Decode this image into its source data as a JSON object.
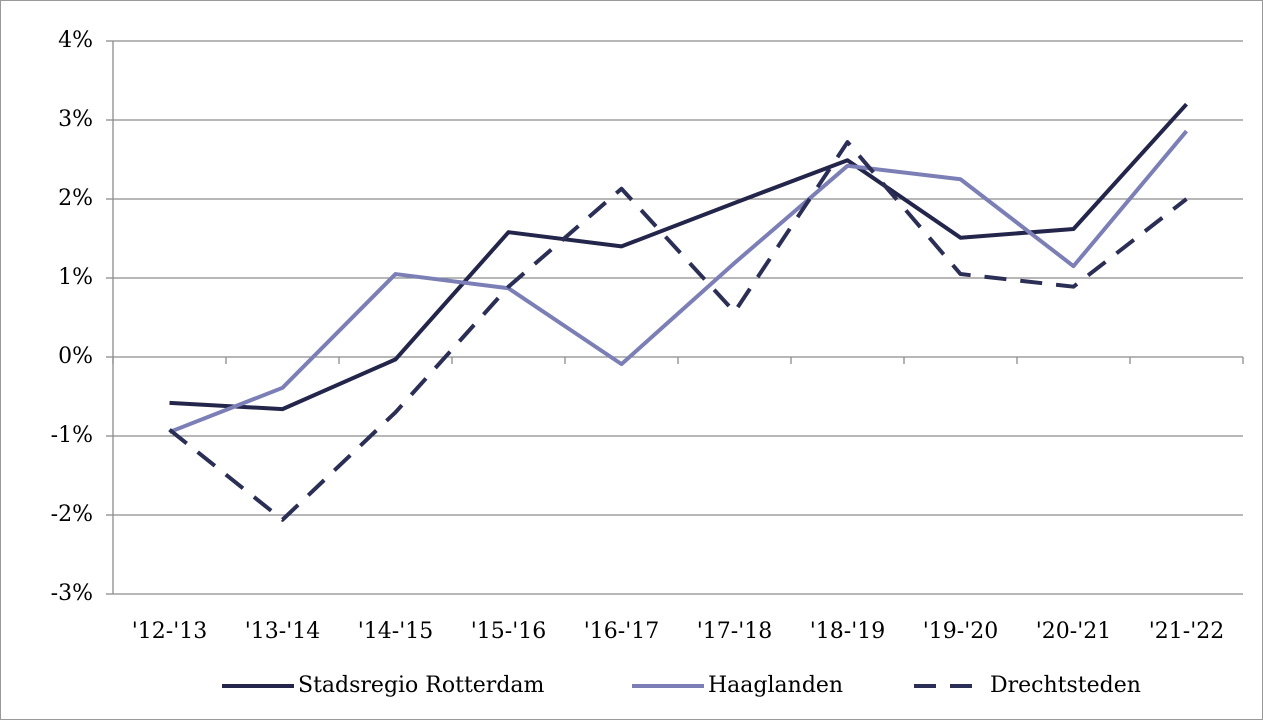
{
  "chart_data": {
    "type": "line",
    "categories": [
      "'12-'13",
      "'13-'14",
      "'14-'15",
      "'15-'16",
      "'16-'17",
      "'17-'18",
      "'18-'19",
      "'19-'20",
      "'20-'21",
      "'21-'22"
    ],
    "series": [
      {
        "name": "Stadsregio Rotterdam",
        "color": "#23264a",
        "dash": "solid",
        "values": [
          -0.58,
          -0.66,
          -0.03,
          1.58,
          1.4,
          1.95,
          2.49,
          1.51,
          1.62,
          3.2
        ]
      },
      {
        "name": "Haaglanden",
        "color": "#7b7fb6",
        "dash": "solid",
        "values": [
          -0.95,
          -0.39,
          1.05,
          0.87,
          -0.09,
          1.19,
          2.42,
          2.25,
          1.15,
          2.86
        ]
      },
      {
        "name": "Drechtsteden",
        "color": "#2b2e55",
        "dash": "dashed",
        "values": [
          -0.92,
          -2.06,
          -0.7,
          0.89,
          2.13,
          0.57,
          2.72,
          1.05,
          0.89,
          2.0
        ]
      }
    ],
    "ylim": [
      -3,
      4
    ],
    "yticks": [
      {
        "value": -3,
        "label": "-3%"
      },
      {
        "value": -2,
        "label": "-2%"
      },
      {
        "value": -1,
        "label": "-1%"
      },
      {
        "value": 0,
        "label": "0%"
      },
      {
        "value": 1,
        "label": "1%"
      },
      {
        "value": 2,
        "label": "2%"
      },
      {
        "value": 3,
        "label": "3%"
      },
      {
        "value": 4,
        "label": "4%"
      }
    ],
    "grid": true,
    "legend": "bottom"
  }
}
